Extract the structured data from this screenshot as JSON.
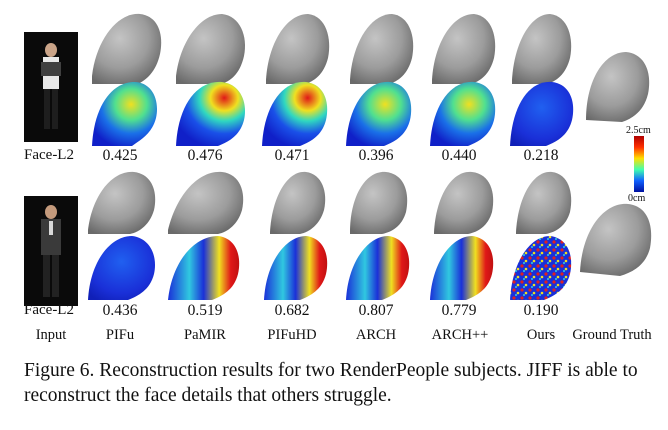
{
  "figure": {
    "row1": {
      "metric_label": "Face-L2",
      "scores": [
        "0.425",
        "0.476",
        "0.471",
        "0.396",
        "0.440",
        "0.218"
      ]
    },
    "row2": {
      "metric_label": "Face-L2",
      "scores": [
        "0.436",
        "0.519",
        "0.682",
        "0.807",
        "0.779",
        "0.190"
      ]
    },
    "column_labels": [
      "Input",
      "PIFu",
      "PaMIR",
      "PIFuHD",
      "ARCH",
      "ARCH++",
      "Ours",
      "Ground Truth"
    ],
    "colorbar": {
      "max_label": "2.5cm",
      "min_label": "0cm"
    }
  },
  "caption": {
    "text": "Figure 6.  Reconstruction results for two RenderPeople subjects. JIFF is able to reconstruct the face details that others struggle."
  },
  "colors": {
    "mesh_gray": "#9a9a9a",
    "error_low": "#1a2fd8",
    "error_high": "#d81a1a",
    "error_mid": "#f0e020"
  }
}
